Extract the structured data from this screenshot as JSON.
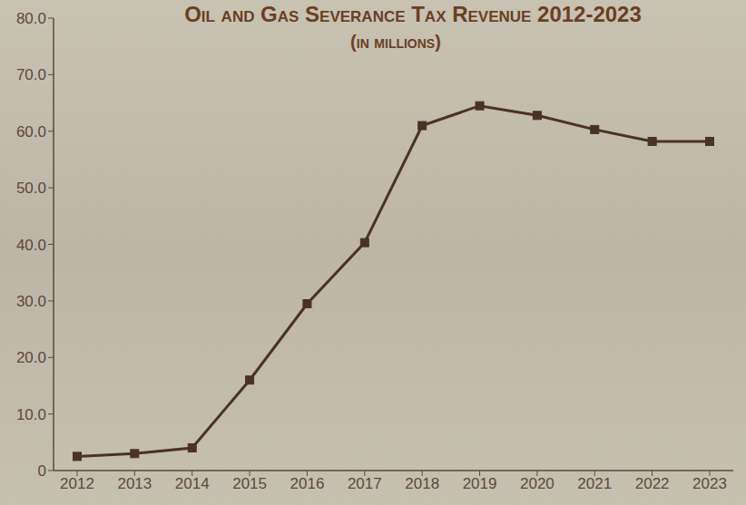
{
  "chart_data": {
    "type": "line",
    "title": "Oil and Gas Severance Tax Revenue 2012-2023",
    "subtitle": "(in millions)",
    "categories": [
      "2012",
      "2013",
      "2014",
      "2015",
      "2016",
      "2017",
      "2018",
      "2019",
      "2020",
      "2021",
      "2022",
      "2023"
    ],
    "values": [
      2.5,
      3.0,
      4.0,
      16.0,
      29.5,
      40.3,
      61.0,
      64.5,
      62.8,
      60.3,
      58.2,
      58.2
    ],
    "color": "#4a3322",
    "marker": "square",
    "line_style": "solid",
    "ylim": [
      0,
      80
    ],
    "yticks": [
      0,
      {
        "value": 10,
        "label": "10.0"
      },
      {
        "value": 20,
        "label": "20.0"
      },
      {
        "value": 30,
        "label": "30.0"
      },
      {
        "value": 40,
        "label": "40.0"
      },
      {
        "value": 50,
        "label": "50.0"
      },
      {
        "value": 60,
        "label": "60.0"
      },
      {
        "value": 70,
        "label": "70.0"
      },
      {
        "value": 80,
        "label": "80.0"
      }
    ],
    "grid": false
  }
}
